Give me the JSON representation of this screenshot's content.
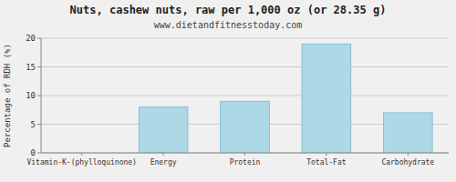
{
  "chart_data": {
    "type": "bar",
    "title": "Nuts, cashew nuts, raw per 1,000 oz (or 28.35 g)",
    "subtitle": "www.dietandfitnesstoday.com",
    "categories": [
      "Vitamin-K-(phylloquinone)",
      "Energy",
      "Protein",
      "Total-Fat",
      "Carbohydrate"
    ],
    "values": [
      0,
      8.0,
      9.0,
      19.0,
      7.0
    ],
    "color": "#add8e6",
    "ylabel": "Percentage of RDH (%)",
    "ylim": [
      0,
      20
    ],
    "yticks": [
      0,
      5,
      10,
      15,
      20
    ],
    "grid": true
  }
}
